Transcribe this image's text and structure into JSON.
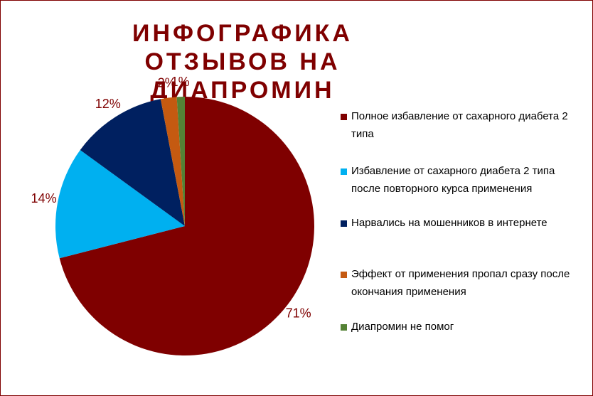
{
  "chart_data": {
    "type": "pie",
    "title": "ИНФОГРАФИКА ОТЗЫВОВ НА ДИАПРОМИН",
    "categories": [
      "Полное избавление от сахарного диабета 2 типа",
      "Избавление от сахарного диабета 2 типа после повторного курса применения",
      "Нарвались на мошенников в интернете",
      "Эффект от применения пропал сразу после окончания применения",
      "Диапромин не помог"
    ],
    "values": [
      71,
      14,
      12,
      2,
      1
    ],
    "value_labels": [
      "71%",
      "14%",
      "12%",
      "2%",
      "1%"
    ],
    "colors": [
      "#7f0000",
      "#00b0f0",
      "#002060",
      "#c55a11",
      "#548235"
    ]
  }
}
